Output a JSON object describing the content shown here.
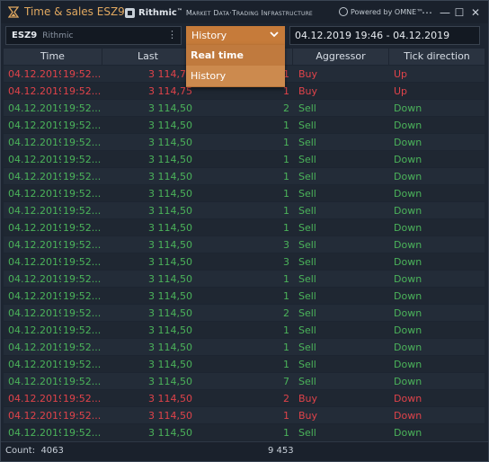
{
  "window": {
    "title": "Time & sales ESZ9",
    "rithmic_name": "Rithmic",
    "rithmic_tm": "™",
    "rithmic_tagline": "Market Data·Trading Infrastructure",
    "omne_text": "Powered by OMNE™",
    "buttons": {
      "menu": "⋯",
      "minimize": "—",
      "maximize": "☐",
      "close": "✕"
    }
  },
  "toolbar": {
    "symbol": "ESZ9",
    "exchange": "Rithmic",
    "symbol_menu": "⋮",
    "mode_selected": "History",
    "range": "04.12.2019 19:46 - 04.12.2019 20:46"
  },
  "dropdown": {
    "options": [
      "Real time",
      "History"
    ]
  },
  "table": {
    "headers": [
      "Time",
      "Last",
      "Aggressor",
      "Tick direction"
    ],
    "rows": [
      {
        "date": "04.12.2019",
        "time": "19:52...",
        "price": "3 114,75",
        "volume": "1",
        "aggressor": "Buy",
        "direction": "Up",
        "color": "red"
      },
      {
        "date": "04.12.2019",
        "time": "19:52...",
        "price": "3 114,75",
        "volume": "1",
        "aggressor": "Buy",
        "direction": "Up",
        "color": "red"
      },
      {
        "date": "04.12.2019",
        "time": "19:52...",
        "price": "3 114,50",
        "volume": "2",
        "aggressor": "Sell",
        "direction": "Down",
        "color": "green"
      },
      {
        "date": "04.12.2019",
        "time": "19:52...",
        "price": "3 114,50",
        "volume": "1",
        "aggressor": "Sell",
        "direction": "Down",
        "color": "green"
      },
      {
        "date": "04.12.2019",
        "time": "19:52...",
        "price": "3 114,50",
        "volume": "1",
        "aggressor": "Sell",
        "direction": "Down",
        "color": "green"
      },
      {
        "date": "04.12.2019",
        "time": "19:52...",
        "price": "3 114,50",
        "volume": "1",
        "aggressor": "Sell",
        "direction": "Down",
        "color": "green"
      },
      {
        "date": "04.12.2019",
        "time": "19:52...",
        "price": "3 114,50",
        "volume": "1",
        "aggressor": "Sell",
        "direction": "Down",
        "color": "green"
      },
      {
        "date": "04.12.2019",
        "time": "19:52...",
        "price": "3 114,50",
        "volume": "1",
        "aggressor": "Sell",
        "direction": "Down",
        "color": "green"
      },
      {
        "date": "04.12.2019",
        "time": "19:52...",
        "price": "3 114,50",
        "volume": "1",
        "aggressor": "Sell",
        "direction": "Down",
        "color": "green"
      },
      {
        "date": "04.12.2019",
        "time": "19:52...",
        "price": "3 114,50",
        "volume": "1",
        "aggressor": "Sell",
        "direction": "Down",
        "color": "green"
      },
      {
        "date": "04.12.2019",
        "time": "19:52...",
        "price": "3 114,50",
        "volume": "3",
        "aggressor": "Sell",
        "direction": "Down",
        "color": "green"
      },
      {
        "date": "04.12.2019",
        "time": "19:52...",
        "price": "3 114,50",
        "volume": "3",
        "aggressor": "Sell",
        "direction": "Down",
        "color": "green"
      },
      {
        "date": "04.12.2019",
        "time": "19:52...",
        "price": "3 114,50",
        "volume": "1",
        "aggressor": "Sell",
        "direction": "Down",
        "color": "green"
      },
      {
        "date": "04.12.2019",
        "time": "19:52...",
        "price": "3 114,50",
        "volume": "1",
        "aggressor": "Sell",
        "direction": "Down",
        "color": "green"
      },
      {
        "date": "04.12.2019",
        "time": "19:52...",
        "price": "3 114,50",
        "volume": "2",
        "aggressor": "Sell",
        "direction": "Down",
        "color": "green"
      },
      {
        "date": "04.12.2019",
        "time": "19:52...",
        "price": "3 114,50",
        "volume": "1",
        "aggressor": "Sell",
        "direction": "Down",
        "color": "green"
      },
      {
        "date": "04.12.2019",
        "time": "19:52...",
        "price": "3 114,50",
        "volume": "1",
        "aggressor": "Sell",
        "direction": "Down",
        "color": "green"
      },
      {
        "date": "04.12.2019",
        "time": "19:52...",
        "price": "3 114,50",
        "volume": "1",
        "aggressor": "Sell",
        "direction": "Down",
        "color": "green"
      },
      {
        "date": "04.12.2019",
        "time": "19:52...",
        "price": "3 114,50",
        "volume": "7",
        "aggressor": "Sell",
        "direction": "Down",
        "color": "green"
      },
      {
        "date": "04.12.2019",
        "time": "19:52...",
        "price": "3 114,50",
        "volume": "2",
        "aggressor": "Buy",
        "direction": "Down",
        "color": "red"
      },
      {
        "date": "04.12.2019",
        "time": "19:52...",
        "price": "3 114,50",
        "volume": "1",
        "aggressor": "Buy",
        "direction": "Down",
        "color": "red"
      },
      {
        "date": "04.12.2019",
        "time": "19:52...",
        "price": "3 114,50",
        "volume": "1",
        "aggressor": "Sell",
        "direction": "Down",
        "color": "green"
      }
    ]
  },
  "footer": {
    "count_label": "Count:",
    "count_value": "4063",
    "total_volume": "9 453"
  },
  "colors": {
    "accent": "#c67b3a",
    "buy": "#e0434a",
    "sell": "#4bb35a",
    "title": "#e0a860"
  }
}
